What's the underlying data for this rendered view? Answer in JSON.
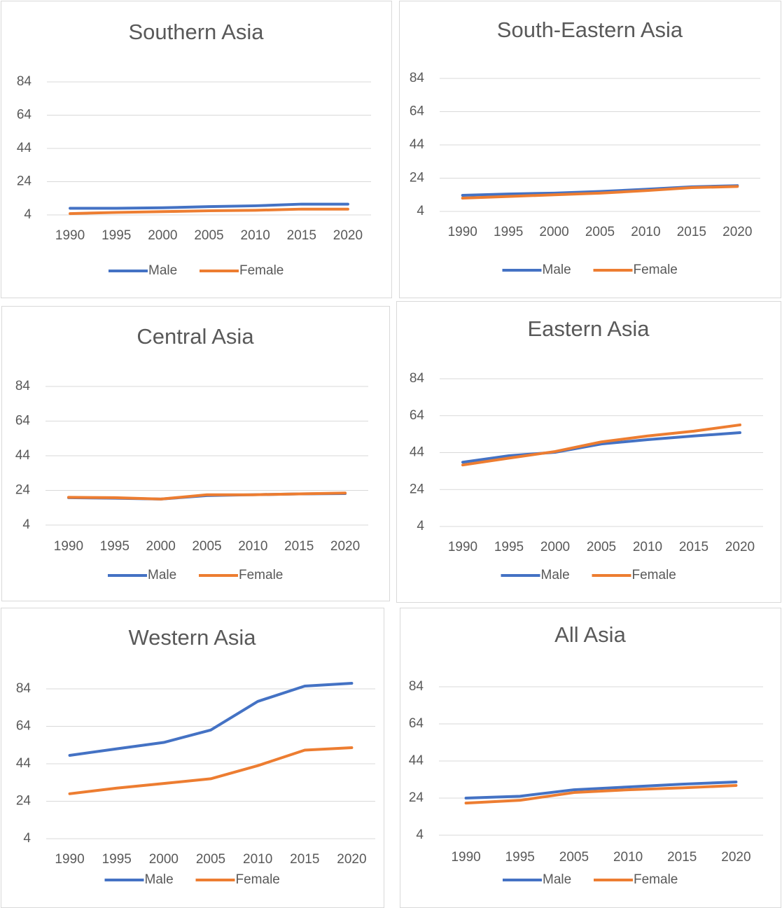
{
  "chart_data": [
    {
      "type": "line",
      "title": "Southern Asia",
      "categories": [
        "1990",
        "1995",
        "2000",
        "2005",
        "2010",
        "2015",
        "2020"
      ],
      "series": [
        {
          "name": "Male",
          "color": "#4472c4",
          "values": [
            8,
            8,
            8.3,
            9,
            9.5,
            10.5,
            10.5
          ]
        },
        {
          "name": "Female",
          "color": "#ed7d31",
          "values": [
            4.8,
            5.5,
            6,
            6.5,
            6.8,
            7.5,
            7.5
          ]
        }
      ],
      "ylim": [
        4,
        84
      ],
      "yticks": [
        4,
        24,
        44,
        64,
        84
      ],
      "grid": true,
      "legend": "bottom"
    },
    {
      "type": "line",
      "title": "South-Eastern Asia",
      "categories": [
        "1990",
        "1995",
        "2000",
        "2005",
        "2010",
        "2015",
        "2020"
      ],
      "series": [
        {
          "name": "Male",
          "color": "#4472c4",
          "values": [
            13.7,
            14.5,
            15,
            16,
            17.3,
            18.8,
            19.5
          ]
        },
        {
          "name": "Female",
          "color": "#ed7d31",
          "values": [
            12,
            13,
            14,
            15,
            16.5,
            18.3,
            19
          ]
        }
      ],
      "ylim": [
        4,
        84
      ],
      "yticks": [
        4,
        24,
        44,
        64,
        84
      ],
      "grid": true,
      "legend": "bottom"
    },
    {
      "type": "line",
      "title": "Central Asia",
      "categories": [
        "1990",
        "1995",
        "2000",
        "2005",
        "2010",
        "2015",
        "2020"
      ],
      "series": [
        {
          "name": "Male",
          "color": "#4472c4",
          "values": [
            19.8,
            19.5,
            19,
            21,
            21.5,
            22,
            22.2
          ]
        },
        {
          "name": "Female",
          "color": "#ed7d31",
          "values": [
            20,
            19.8,
            19,
            21.5,
            21.5,
            22,
            22.5
          ]
        }
      ],
      "ylim": [
        4,
        84
      ],
      "yticks": [
        4,
        24,
        44,
        64,
        84
      ],
      "grid": true,
      "legend": "bottom"
    },
    {
      "type": "line",
      "title": "Eastern Asia",
      "categories": [
        "1990",
        "1995",
        "2000",
        "2005",
        "2010",
        "2015",
        "2020"
      ],
      "series": [
        {
          "name": "Male",
          "color": "#4472c4",
          "values": [
            38.8,
            42.3,
            44.2,
            48.7,
            51,
            53,
            54.8
          ]
        },
        {
          "name": "Female",
          "color": "#ed7d31",
          "values": [
            37.3,
            41,
            44.6,
            49.8,
            53,
            55.6,
            59
          ]
        }
      ],
      "ylim": [
        4,
        84
      ],
      "yticks": [
        4,
        24,
        44,
        64,
        84
      ],
      "grid": true,
      "legend": "bottom"
    },
    {
      "type": "line",
      "title": "Western Asia",
      "categories": [
        "1990",
        "1995",
        "2000",
        "2005",
        "2010",
        "2015",
        "2020"
      ],
      "series": [
        {
          "name": "Male",
          "color": "#4472c4",
          "values": [
            48.5,
            52,
            55.4,
            62,
            77.3,
            85.5,
            87
          ]
        },
        {
          "name": "Female",
          "color": "#ed7d31",
          "values": [
            28,
            31,
            33.5,
            36,
            43,
            51.3,
            52.6
          ]
        }
      ],
      "ylim": [
        4,
        84
      ],
      "yticks": [
        4,
        24,
        44,
        64,
        84
      ],
      "grid": true,
      "legend": "bottom"
    },
    {
      "type": "line",
      "title": "All Asia",
      "categories": [
        "1990",
        "1995",
        "2005",
        "2010",
        "2015",
        "2020"
      ],
      "series": [
        {
          "name": "Male",
          "color": "#4472c4",
          "values": [
            24,
            25,
            28.5,
            30,
            31.5,
            32.7
          ]
        },
        {
          "name": "Female",
          "color": "#ed7d31",
          "values": [
            21.3,
            22.8,
            27,
            28.5,
            29.5,
            30.8
          ]
        }
      ],
      "ylim": [
        4,
        84
      ],
      "yticks": [
        4,
        24,
        44,
        64,
        84
      ],
      "grid": true,
      "legend": "bottom"
    }
  ]
}
